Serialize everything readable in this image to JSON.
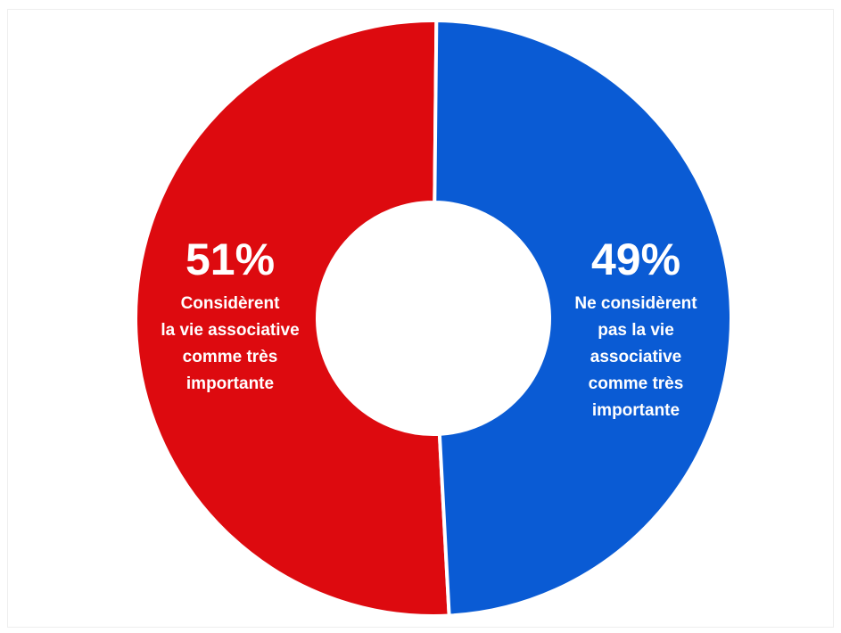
{
  "chart_data": {
    "type": "pie",
    "donut": true,
    "slices": [
      {
        "value": 51,
        "percent_label": "51%",
        "lines": [
          "Considèrent",
          "la vie associative",
          "comme très",
          "importante"
        ],
        "color": "#dd0a0f"
      },
      {
        "value": 49,
        "percent_label": "49%",
        "lines": [
          "Ne considèrent",
          "pas la vie",
          "associative",
          "comme très",
          "importante"
        ],
        "color": "#0a5bd4"
      }
    ],
    "title": "",
    "legend": "none"
  }
}
